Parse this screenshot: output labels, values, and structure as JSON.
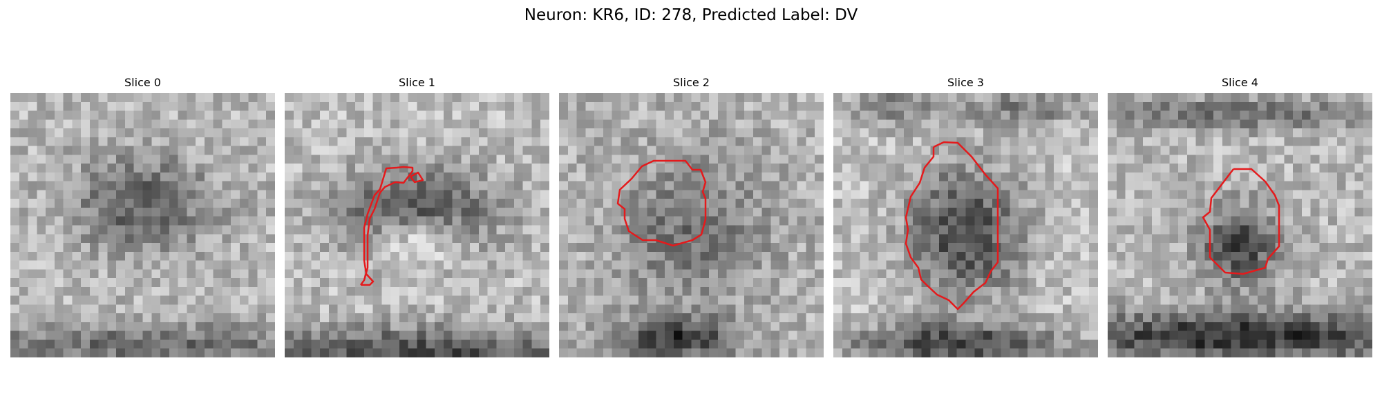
{
  "figure": {
    "title": "Neuron: KR6, ID: 278, Predicted Label: DV"
  },
  "panels": [
    {
      "title": "Slice 0"
    },
    {
      "title": "Slice 1"
    },
    {
      "title": "Slice 2"
    },
    {
      "title": "Slice 3"
    },
    {
      "title": "Slice 4"
    }
  ],
  "contour_color": "#e41a1c",
  "image_colormap": "grayscale"
}
